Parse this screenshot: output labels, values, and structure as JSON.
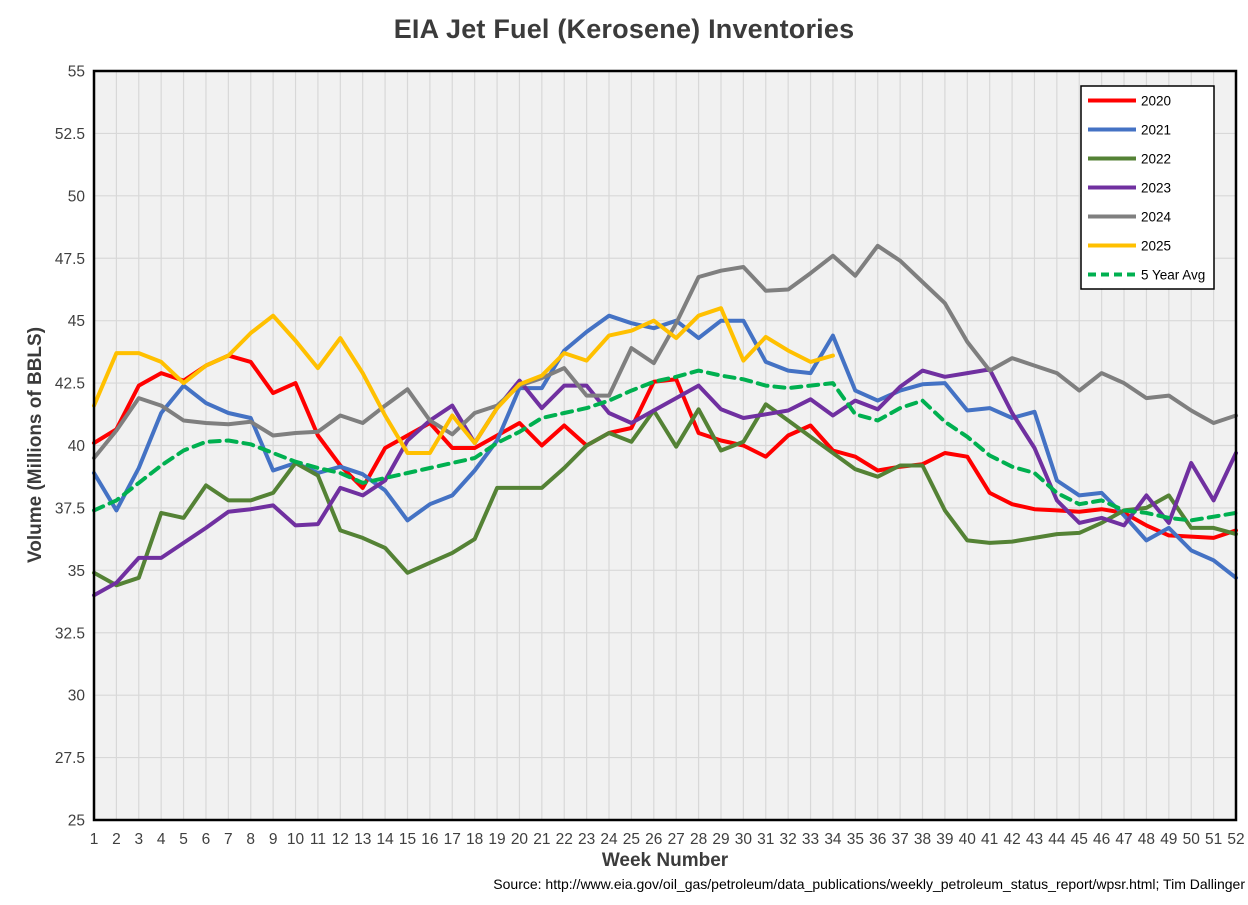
{
  "title": "EIA Jet Fuel (Kerosene) Inventories",
  "x_axis_label": "Week Number",
  "y_axis_label": "Volume (Millions of BBLS)",
  "source_note": "Source: http://www.eia.gov/oil_gas/petroleum/data_publications/weekly_petroleum_status_report/wpsr.html; Tim Dallinger",
  "legend": {
    "position": "top-right",
    "entries": [
      "2020",
      "2021",
      "2022",
      "2023",
      "2024",
      "2025",
      "5 Year Avg"
    ]
  },
  "colors": {
    "plot_background": "#F1F1F1",
    "gridline": "#D8D8D8",
    "border": "#000000",
    "text": "#3F3F3F",
    "series_2020": "#FF0000",
    "series_2021": "#4472C4",
    "series_2022": "#548235",
    "series_2023": "#7030A0",
    "series_2024": "#7F7F7F",
    "series_2025": "#FFC000",
    "series_avg": "#00B050"
  },
  "chart_data": {
    "type": "line",
    "title": "EIA Jet Fuel (Kerosene) Inventories",
    "xlabel": "Week Number",
    "ylabel": "Volume (Millions of BBLS)",
    "xlim": [
      1,
      52
    ],
    "ylim": [
      25,
      55
    ],
    "grid": true,
    "legend_position": "top-right",
    "x_tick_labels": [
      "1",
      "2",
      "3",
      "4",
      "5",
      "6",
      "7",
      "8",
      "9",
      "10",
      "11",
      "12",
      "13",
      "14",
      "15",
      "16",
      "17",
      "18",
      "19",
      "20",
      "21",
      "22",
      "23",
      "24",
      "25",
      "26",
      "27",
      "28",
      "29",
      "30",
      "31",
      "32",
      "33",
      "34",
      "35",
      "36",
      "37",
      "38",
      "39",
      "40",
      "41",
      "42",
      "43",
      "44",
      "45",
      "46",
      "47",
      "48",
      "49",
      "50",
      "51",
      "52"
    ],
    "y_tick_labels": [
      "25",
      "27.5",
      "30",
      "32.5",
      "35",
      "37.5",
      "40",
      "42.5",
      "45",
      "47.5",
      "50",
      "52.5",
      "55"
    ],
    "y_ticks": [
      25,
      27.5,
      30,
      32.5,
      35,
      37.5,
      40,
      42.5,
      45,
      47.5,
      50,
      52.5,
      55
    ],
    "series": [
      {
        "name": "2020",
        "color": "#FF0000",
        "style": "solid",
        "values": [
          40.1,
          40.65,
          42.4,
          42.9,
          42.6,
          43.2,
          43.6,
          43.35,
          42.1,
          42.5,
          40.4,
          39.2,
          38.3,
          39.9,
          40.4,
          40.9,
          39.9,
          39.9,
          40.4,
          40.9,
          40.0,
          40.8,
          40.0,
          40.5,
          40.7,
          42.55,
          42.65,
          40.5,
          40.2,
          40.0,
          39.55,
          40.4,
          40.8,
          39.8,
          39.55,
          39.0,
          39.15,
          39.25,
          39.7,
          39.55,
          38.1,
          37.65,
          37.45,
          37.4,
          37.35,
          37.45,
          37.3,
          36.8,
          36.4,
          36.35,
          36.3,
          36.6
        ]
      },
      {
        "name": "2021",
        "color": "#4472C4",
        "style": "solid",
        "values": [
          38.9,
          37.4,
          39.1,
          41.3,
          42.4,
          41.7,
          41.3,
          41.1,
          39.0,
          39.3,
          38.9,
          39.15,
          38.85,
          38.2,
          37.0,
          37.65,
          38.0,
          39.0,
          40.2,
          42.3,
          42.3,
          43.8,
          44.55,
          45.2,
          44.9,
          44.7,
          45.0,
          44.3,
          45.0,
          45.0,
          43.35,
          43.0,
          42.9,
          44.4,
          42.2,
          41.8,
          42.2,
          42.45,
          42.5,
          41.4,
          41.5,
          41.1,
          41.35,
          38.6,
          38.0,
          38.1,
          37.2,
          36.2,
          36.7,
          35.8,
          35.4,
          34.7
        ]
      },
      {
        "name": "2022",
        "color": "#548235",
        "style": "solid",
        "values": [
          34.9,
          34.4,
          34.7,
          37.3,
          37.1,
          38.4,
          37.8,
          37.8,
          38.1,
          39.3,
          38.8,
          36.6,
          36.3,
          35.9,
          34.9,
          35.3,
          35.7,
          36.25,
          38.3,
          38.3,
          38.3,
          39.1,
          40.0,
          40.5,
          40.15,
          41.4,
          39.95,
          41.45,
          39.8,
          40.15,
          41.65,
          41.0,
          40.35,
          39.7,
          39.05,
          38.75,
          39.2,
          39.2,
          37.4,
          36.2,
          36.1,
          36.15,
          36.3,
          36.45,
          36.5,
          36.9,
          37.4,
          37.5,
          38.0,
          36.7,
          36.7,
          36.45
        ]
      },
      {
        "name": "2023",
        "color": "#7030A0",
        "style": "solid",
        "values": [
          34.0,
          34.5,
          35.5,
          35.5,
          36.1,
          36.7,
          37.35,
          37.45,
          37.6,
          36.8,
          36.85,
          38.3,
          38.0,
          38.6,
          40.2,
          41.0,
          41.6,
          40.1,
          41.5,
          42.6,
          41.5,
          42.4,
          42.4,
          41.3,
          40.9,
          41.4,
          41.9,
          42.4,
          41.45,
          41.1,
          41.25,
          41.4,
          41.85,
          41.2,
          41.8,
          41.45,
          42.35,
          43.0,
          42.75,
          42.9,
          43.05,
          41.3,
          39.9,
          37.8,
          36.9,
          37.1,
          36.8,
          38.0,
          36.9,
          39.3,
          37.8,
          39.7
        ]
      },
      {
        "name": "2024",
        "color": "#7F7F7F",
        "style": "solid",
        "values": [
          39.5,
          40.6,
          41.9,
          41.6,
          41.0,
          40.9,
          40.85,
          40.95,
          40.4,
          40.5,
          40.55,
          41.2,
          40.9,
          41.6,
          42.25,
          41.0,
          40.45,
          41.3,
          41.6,
          42.4,
          42.7,
          43.1,
          42.0,
          42.0,
          43.9,
          43.3,
          44.9,
          46.75,
          47.0,
          47.15,
          46.2,
          46.25,
          46.9,
          47.6,
          46.8,
          48.0,
          47.4,
          46.55,
          45.7,
          44.15,
          43.0,
          43.5,
          43.2,
          42.9,
          42.2,
          42.9,
          42.5,
          41.9,
          42.0,
          41.4,
          40.9,
          41.2
        ]
      },
      {
        "name": "2025",
        "color": "#FFC000",
        "style": "solid",
        "values": [
          41.6,
          43.7,
          43.7,
          43.35,
          42.5,
          43.2,
          43.6,
          44.5,
          45.2,
          44.2,
          43.1,
          44.3,
          42.9,
          41.2,
          39.7,
          39.7,
          41.2,
          40.1,
          41.5,
          42.45,
          42.8,
          43.7,
          43.4,
          44.4,
          44.6,
          45.0,
          44.3,
          45.2,
          45.5,
          43.4,
          44.35,
          43.8,
          43.35,
          43.6
        ]
      },
      {
        "name": "5 Year Avg",
        "color": "#00B050",
        "style": "dashed",
        "values": [
          37.4,
          37.8,
          38.5,
          39.2,
          39.8,
          40.15,
          40.2,
          40.05,
          39.7,
          39.35,
          39.1,
          38.9,
          38.5,
          38.7,
          38.9,
          39.1,
          39.3,
          39.5,
          40.1,
          40.55,
          41.1,
          41.3,
          41.5,
          41.8,
          42.2,
          42.55,
          42.75,
          43.0,
          42.8,
          42.65,
          42.4,
          42.3,
          42.4,
          42.5,
          41.25,
          41.0,
          41.5,
          41.8,
          40.95,
          40.35,
          39.6,
          39.15,
          38.9,
          38.1,
          37.65,
          37.8,
          37.4,
          37.3,
          37.1,
          37.0,
          37.15,
          37.3
        ]
      }
    ]
  }
}
